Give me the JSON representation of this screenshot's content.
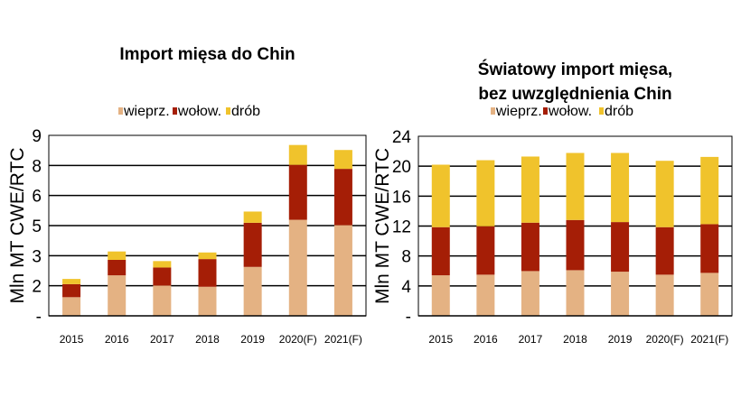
{
  "chart_data": [
    {
      "type": "bar",
      "stacked": true,
      "title": "Import mięsa do Chin",
      "ylabel": "Mln MT CWE/RTC",
      "ylim": [
        0,
        9
      ],
      "yticks": [
        0,
        1.5,
        3,
        4.5,
        6,
        7.5,
        9
      ],
      "ytick_labels": [
        "-",
        "2",
        "3",
        "5",
        "6",
        "8",
        "9"
      ],
      "grid": true,
      "legend": "top",
      "categories": [
        "2015",
        "2016",
        "2017",
        "2018",
        "2019",
        "2020(F)",
        "2021(F)"
      ],
      "series": [
        {
          "name": "wieprz.",
          "color": "#E4B283",
          "values": [
            0.93,
            2.02,
            1.51,
            1.45,
            2.44,
            4.79,
            4.52
          ]
        },
        {
          "name": "wołow.",
          "color": "#A51E06",
          "values": [
            0.65,
            0.77,
            0.9,
            1.38,
            2.2,
            2.74,
            2.81
          ]
        },
        {
          "name": "drób",
          "color": "#F0C32C",
          "values": [
            0.26,
            0.42,
            0.32,
            0.33,
            0.56,
            0.99,
            0.94
          ]
        }
      ]
    },
    {
      "type": "bar",
      "stacked": true,
      "title": [
        "Światowy import mięsa,",
        "bez uwzględnienia Chin"
      ],
      "ylabel": "Mln MT CWE/RTC",
      "ylim": [
        0,
        24
      ],
      "yticks": [
        0,
        4,
        8,
        12,
        16,
        20,
        24
      ],
      "ytick_labels": [
        "-",
        "4",
        "8",
        "12",
        "16",
        "20",
        "24"
      ],
      "grid": true,
      "legend": "top",
      "categories": [
        "2015",
        "2016",
        "2017",
        "2018",
        "2019",
        "2020(F)",
        "2021(F)"
      ],
      "series": [
        {
          "name": "wieprz.",
          "color": "#E4B283",
          "values": [
            5.42,
            5.5,
            5.98,
            6.1,
            5.9,
            5.5,
            5.74
          ]
        },
        {
          "name": "wołow.",
          "color": "#A51E06",
          "values": [
            6.43,
            6.47,
            6.47,
            6.71,
            6.63,
            6.35,
            6.51
          ]
        },
        {
          "name": "drób",
          "color": "#F0C32C",
          "values": [
            8.35,
            8.83,
            8.84,
            8.96,
            9.24,
            8.87,
            8.99
          ]
        }
      ]
    }
  ]
}
